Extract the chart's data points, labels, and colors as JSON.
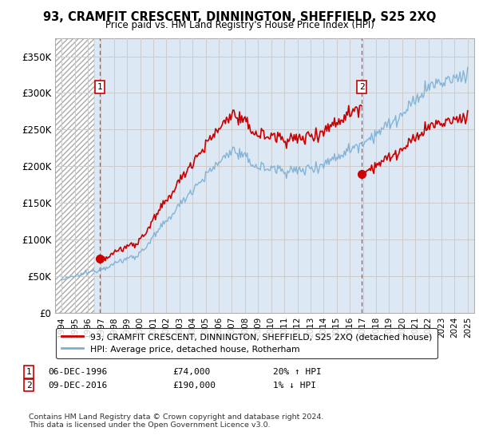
{
  "title": "93, CRAMFIT CRESCENT, DINNINGTON, SHEFFIELD, S25 2XQ",
  "subtitle": "Price paid vs. HM Land Registry's House Price Index (HPI)",
  "ylabel_ticks": [
    "£0",
    "£50K",
    "£100K",
    "£150K",
    "£200K",
    "£250K",
    "£300K",
    "£350K"
  ],
  "ytick_values": [
    0,
    50000,
    100000,
    150000,
    200000,
    250000,
    300000,
    350000
  ],
  "ylim": [
    0,
    375000
  ],
  "xlim_start": 1993.5,
  "xlim_end": 2025.5,
  "xticks": [
    1994,
    1995,
    1996,
    1997,
    1998,
    1999,
    2000,
    2001,
    2002,
    2003,
    2004,
    2005,
    2006,
    2007,
    2008,
    2009,
    2010,
    2011,
    2012,
    2013,
    2014,
    2015,
    2016,
    2017,
    2018,
    2019,
    2020,
    2021,
    2022,
    2023,
    2024,
    2025
  ],
  "hatch_end_year": 1996.5,
  "sale1_year": 1996.92,
  "sale1_price": 74000,
  "sale1_label": "1",
  "sale1_date": "06-DEC-1996",
  "sale1_hpi_pct": "20% ↑ HPI",
  "sale2_year": 2016.92,
  "sale2_price": 190000,
  "sale2_label": "2",
  "sale2_date": "09-DEC-2016",
  "sale2_hpi_pct": "1% ↓ HPI",
  "red_color": "#cc0000",
  "blue_color": "#7aafd4",
  "hatch_color": "#aaaaaa",
  "grid_color": "#cccccc",
  "bg_color": "#dce9f5",
  "legend_label1": "93, CRAMFIT CRESCENT, DINNINGTON, SHEFFIELD, S25 2XQ (detached house)",
  "legend_label2": "HPI: Average price, detached house, Rotherham",
  "footnote": "Contains HM Land Registry data © Crown copyright and database right 2024.\nThis data is licensed under the Open Government Licence v3.0."
}
